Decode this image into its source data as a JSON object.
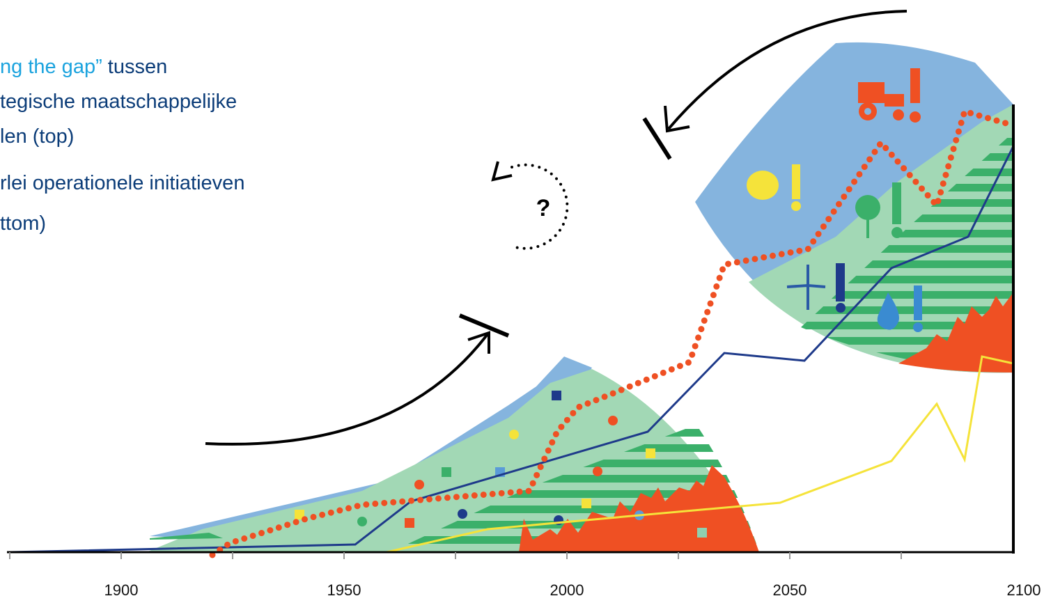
{
  "intro": {
    "lines": [
      {
        "highlight": "ng the gap”",
        "rest": " tussen"
      },
      {
        "rest": "tegische maatschappelijke"
      },
      {
        "rest": "len (top)"
      },
      {
        "rest": "rlei operationele initiatieven"
      },
      {
        "rest": "ttom)"
      }
    ]
  },
  "question": "?",
  "axis": {
    "labels": [
      "1900",
      "1950",
      "2000",
      "2050",
      "2100"
    ]
  }
}
